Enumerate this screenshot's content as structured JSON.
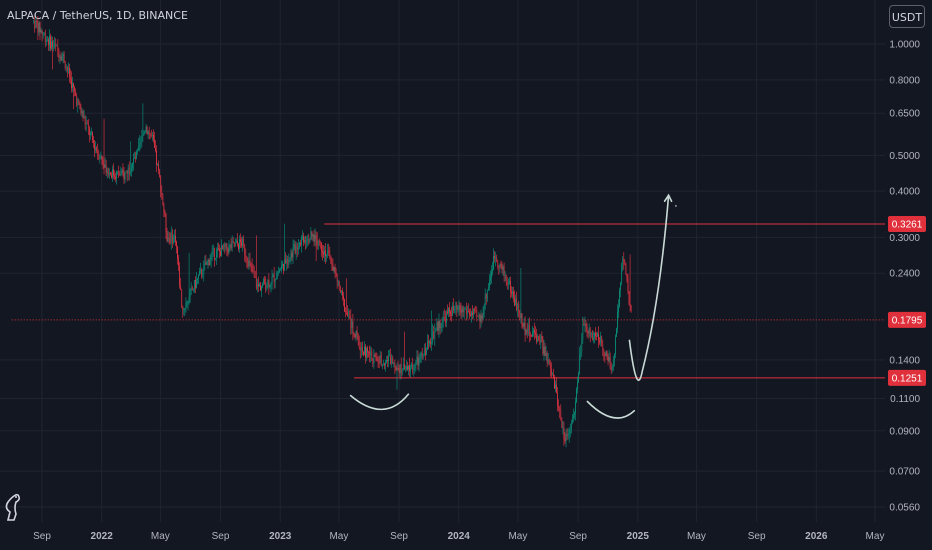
{
  "header": {
    "symbol": "ALPACA / TetherUS, 1D, BINANCE",
    "currency_button": "USDT"
  },
  "colors": {
    "background": "#131722",
    "grid": "#1f2430",
    "axis_text": "#b2b5be",
    "bull": "#089981",
    "bear": "#f23645",
    "level_line": "#e0303c",
    "drawing": "#c8d9d6"
  },
  "chart_data": {
    "type": "candlestick",
    "y_scale": "log",
    "ylim": [
      0.055,
      1.28
    ],
    "y_ticks": [
      "1.0000",
      "0.8000",
      "0.6500",
      "0.5000",
      "0.4000",
      "0.3000",
      "0.2400",
      "0.1400",
      "0.1100",
      "0.0900",
      "0.0700",
      "0.0560"
    ],
    "x_ticks": [
      "Sep",
      "2022",
      "May",
      "Sep",
      "2023",
      "May",
      "Sep",
      "2024",
      "May",
      "Sep",
      "2025",
      "May",
      "Sep",
      "2026",
      "May"
    ],
    "x_range": [
      "2021-07",
      "2026-06"
    ],
    "horizontal_levels": [
      {
        "label": "0.3261",
        "value": 0.3261,
        "from": "2023-04"
      },
      {
        "label": "0.1795",
        "value": 0.1795,
        "from": "2021-07",
        "style": "current-price"
      },
      {
        "label": "0.1251",
        "value": 0.1251,
        "from": "2023-06"
      }
    ],
    "price_path": [
      [
        "2021-08-15",
        1.15
      ],
      [
        "2021-09-15",
        1.02
      ],
      [
        "2021-10-15",
        0.92
      ],
      [
        "2021-11-15",
        0.68
      ],
      [
        "2021-12-15",
        0.54
      ],
      [
        "2022-01-15",
        0.45
      ],
      [
        "2022-02-15",
        0.44
      ],
      [
        "2022-03-15",
        0.5
      ],
      [
        "2022-04-01",
        0.6
      ],
      [
        "2022-04-15",
        0.55
      ],
      [
        "2022-05-01",
        0.42
      ],
      [
        "2022-05-15",
        0.3
      ],
      [
        "2022-06-01",
        0.3
      ],
      [
        "2022-06-15",
        0.19
      ],
      [
        "2022-07-15",
        0.23
      ],
      [
        "2022-08-15",
        0.27
      ],
      [
        "2022-09-15",
        0.28
      ],
      [
        "2022-10-15",
        0.29
      ],
      [
        "2022-11-15",
        0.22
      ],
      [
        "2022-12-15",
        0.23
      ],
      [
        "2023-01-15",
        0.26
      ],
      [
        "2023-02-15",
        0.3
      ],
      [
        "2023-03-15",
        0.3
      ],
      [
        "2023-04-15",
        0.26
      ],
      [
        "2023-05-15",
        0.19
      ],
      [
        "2023-06-15",
        0.15
      ],
      [
        "2023-07-15",
        0.14
      ],
      [
        "2023-08-15",
        0.14
      ],
      [
        "2023-09-15",
        0.13
      ],
      [
        "2023-10-15",
        0.14
      ],
      [
        "2023-11-15",
        0.17
      ],
      [
        "2023-12-15",
        0.19
      ],
      [
        "2024-01-15",
        0.19
      ],
      [
        "2024-02-15",
        0.18
      ],
      [
        "2024-03-15",
        0.27
      ],
      [
        "2024-04-15",
        0.22
      ],
      [
        "2024-05-15",
        0.17
      ],
      [
        "2024-06-15",
        0.16
      ],
      [
        "2024-07-15",
        0.12
      ],
      [
        "2024-08-05",
        0.085
      ],
      [
        "2024-08-25",
        0.1
      ],
      [
        "2024-09-10",
        0.17
      ],
      [
        "2024-10-15",
        0.16
      ],
      [
        "2024-11-10",
        0.13
      ],
      [
        "2024-12-01",
        0.27
      ],
      [
        "2024-12-20",
        0.18
      ]
    ],
    "annotations": [
      {
        "shape": "arc",
        "label": "left-shoulder"
      },
      {
        "shape": "arc",
        "label": "right-shoulder"
      },
      {
        "shape": "arrow",
        "label": "projected-breakout"
      }
    ]
  }
}
